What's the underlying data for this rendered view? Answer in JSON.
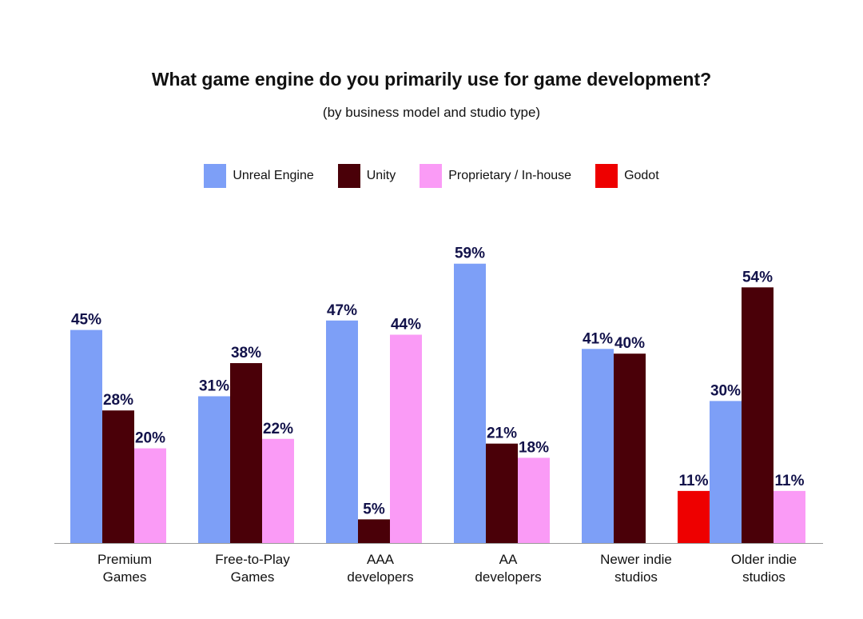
{
  "chart_data": {
    "type": "bar",
    "title": "What game engine do you primarily use for game development?",
    "subtitle": "(by business model and studio type)",
    "categories": [
      [
        "Premium",
        "Games"
      ],
      [
        "Free-to-Play",
        "Games"
      ],
      [
        "AAA",
        "developers"
      ],
      [
        "AA",
        "developers"
      ],
      [
        "Newer indie",
        "studios"
      ],
      [
        "Older indie",
        "studios"
      ]
    ],
    "series": [
      {
        "name": "Unreal Engine",
        "color": "#7d9ff7",
        "values": [
          45,
          31,
          47,
          59,
          41,
          30
        ]
      },
      {
        "name": "Unity",
        "color": "#4a0008",
        "values": [
          28,
          38,
          5,
          21,
          40,
          54
        ]
      },
      {
        "name": "Proprietary / In-house",
        "color": "#fa9bf6",
        "values": [
          20,
          22,
          44,
          18,
          null,
          11
        ]
      },
      {
        "name": "Godot",
        "color": "#ee0000",
        "values": [
          null,
          null,
          null,
          null,
          11,
          null
        ]
      }
    ],
    "value_suffix": "%",
    "ylim": [
      0,
      60
    ],
    "xlabel": "",
    "ylabel": "",
    "grid": false,
    "legend_position": "top-center"
  }
}
